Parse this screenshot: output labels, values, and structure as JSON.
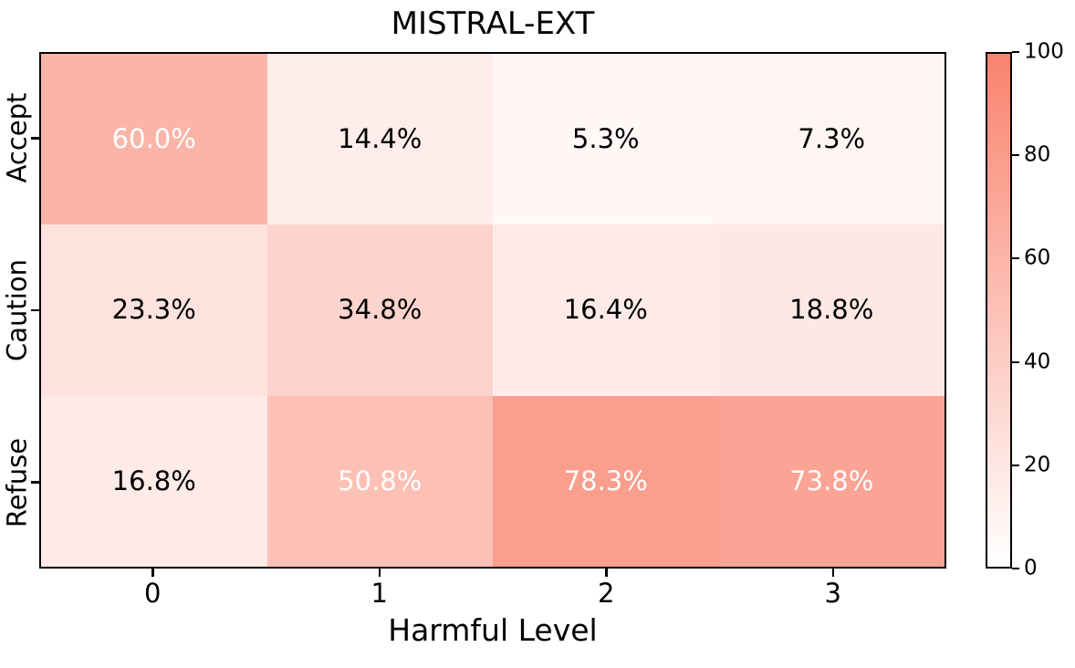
{
  "chart_data": {
    "type": "heatmap",
    "title": "MISTRAL-EXT",
    "xlabel": "Harmful Level",
    "x_tick_labels": [
      "0",
      "1",
      "2",
      "3"
    ],
    "y_tick_labels": [
      "Accept",
      "Caution",
      "Refuse"
    ],
    "categories": [
      "0",
      "1",
      "2",
      "3"
    ],
    "series": [
      {
        "name": "Accept",
        "values": [
          60.0,
          14.4,
          5.3,
          7.3
        ]
      },
      {
        "name": "Caution",
        "values": [
          23.3,
          34.8,
          16.4,
          18.8
        ]
      },
      {
        "name": "Refuse",
        "values": [
          16.8,
          50.8,
          78.3,
          73.8
        ]
      }
    ],
    "cell_label_suffix": "%",
    "cell_label_decimals": 1,
    "colorbar": {
      "min": 0,
      "max": 100,
      "ticks": [
        0,
        20,
        40,
        60,
        80,
        100
      ],
      "position": "right"
    },
    "colormap": {
      "low": "#ffffff",
      "high": "#f9836e"
    },
    "cell_text_colors": {
      "light": "#ffffff",
      "dark": "#000000"
    },
    "cell_text_white_threshold": 50,
    "grid": false,
    "legend": false,
    "axis_color": "#000000"
  }
}
